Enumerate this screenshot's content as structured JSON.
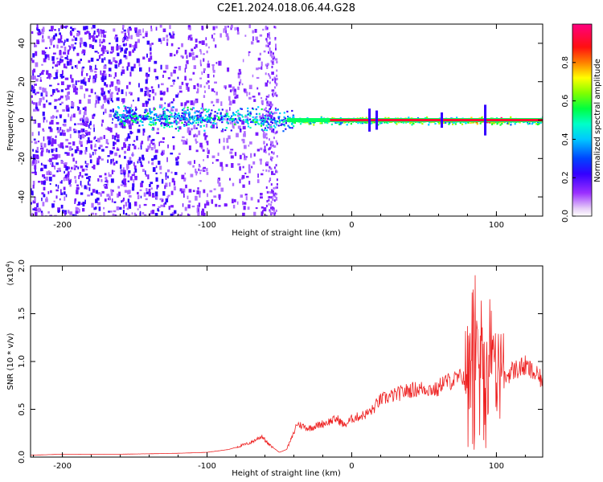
{
  "title": "C2E1.2024.018.06.44.G28",
  "chart_data": [
    {
      "type": "heatmap",
      "xlabel": "Height of straight line (km)",
      "ylabel": "Frequency (Hz)",
      "xlim": [
        -222,
        132
      ],
      "ylim": [
        -50,
        50
      ],
      "x_ticks": [
        -200,
        -100,
        0,
        100
      ],
      "y_ticks": [
        -40,
        -20,
        0,
        20,
        40
      ],
      "colorbar": {
        "label": "Normalized spectral amplitude",
        "range": [
          0,
          1
        ],
        "ticks": [
          0.0,
          0.2,
          0.4,
          0.6,
          0.8
        ],
        "colormap": [
          "#ffffff",
          "#e6cdf7",
          "#9b30ff",
          "#5a00ff",
          "#0000ff",
          "#00bfff",
          "#00ffd0",
          "#00ff40",
          "#a0ff00",
          "#ffff00",
          "#ff8000",
          "#ff0000",
          "#ff0066"
        ]
      },
      "features": [
        {
          "description": "broadband noise region",
          "x_range": [
            -222,
            -45
          ]
        },
        {
          "description": "central line at 0 Hz",
          "x_range": [
            -45,
            132
          ],
          "frequency": 0
        }
      ]
    },
    {
      "type": "line",
      "xlabel": "Height of straight line (km)",
      "ylabel": "SNR (10 * v/v)",
      "y_multiplier": "(x10",
      "y_multiplier_exp": "4",
      "xlim": [
        -222,
        132
      ],
      "ylim": [
        0.0,
        2.0
      ],
      "x_ticks": [
        -200,
        -100,
        0,
        100
      ],
      "y_ticks": [
        0.0,
        0.5,
        1.0,
        1.5,
        2.0
      ],
      "color": "#ee2222",
      "series": [
        {
          "x": [
            -222,
            -200,
            -160,
            -120,
            -100,
            -85,
            -70,
            -62,
            -58,
            -50,
            -45,
            -40,
            -38,
            -30,
            -20,
            -10,
            -5,
            0,
            10,
            15,
            17,
            20,
            30,
            40,
            50,
            60,
            62,
            70,
            78,
            82,
            85,
            88,
            90,
            92,
            95,
            100,
            105,
            110,
            120,
            132
          ],
          "y": [
            0.02,
            0.03,
            0.03,
            0.04,
            0.05,
            0.08,
            0.15,
            0.22,
            0.14,
            0.05,
            0.08,
            0.25,
            0.35,
            0.3,
            0.35,
            0.4,
            0.33,
            0.4,
            0.45,
            0.5,
            0.55,
            0.6,
            0.65,
            0.7,
            0.72,
            0.7,
            0.78,
            0.8,
            0.85,
            1.1,
            1.6,
            0.6,
            1.35,
            0.7,
            1.1,
            0.9,
            0.8,
            0.9,
            0.95,
            0.8
          ]
        }
      ]
    }
  ]
}
